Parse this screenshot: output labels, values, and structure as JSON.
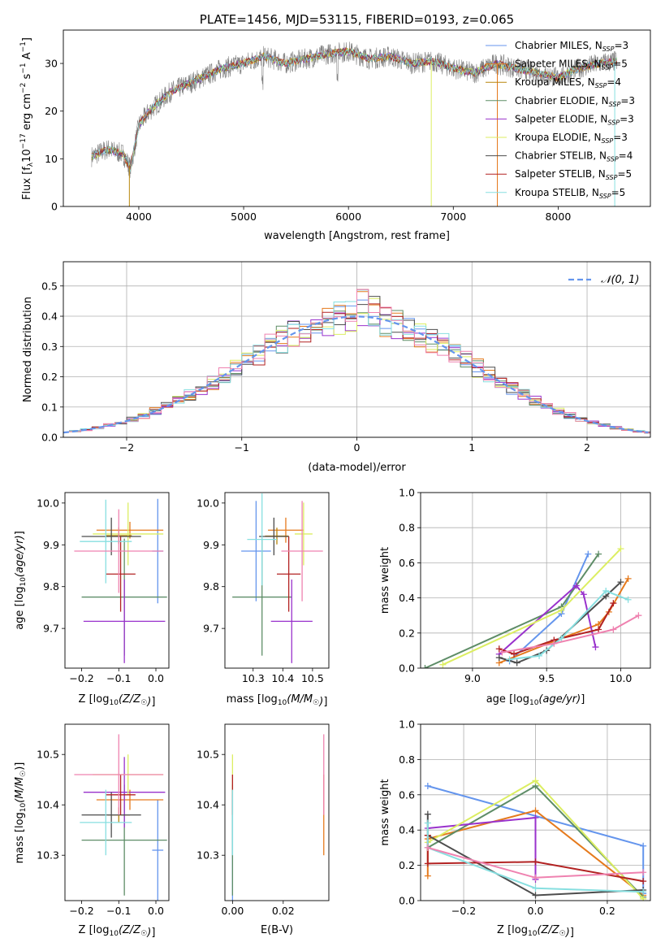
{
  "chart_data": [
    {
      "id": "spectrum",
      "type": "line",
      "title": "PLATE=1456, MJD=53115, FIBERID=0193, z=0.065",
      "xlabel": "wavelength [Angstrom, rest frame]",
      "ylabel": "Flux [f_λ10^-17 erg cm^-2 s^-1 A^-1]",
      "xlim": [
        3280,
        8880
      ],
      "ylim": [
        0,
        37
      ],
      "xticks": [
        4000,
        5000,
        6000,
        7000,
        8000
      ],
      "yticks": [
        0,
        10,
        20,
        30
      ],
      "grid": false,
      "legend_position": "top-right",
      "series": [
        {
          "name": "Chabrier MILES, N_SSP=3",
          "color": "#6495ed"
        },
        {
          "name": "Salpeter MILES, N_SSP=5",
          "color": "#e57a1d"
        },
        {
          "name": "Kroupa MILES, N_SSP=4",
          "color": "#b8860b"
        },
        {
          "name": "Chabrier ELODIE, N_SSP=3",
          "color": "#5e8d67"
        },
        {
          "name": "Salpeter ELODIE, N_SSP=3",
          "color": "#9932cc"
        },
        {
          "name": "Kroupa ELODIE, N_SSP=3",
          "color": "#dcee62"
        },
        {
          "name": "Chabrier STELIB, N_SSP=4",
          "color": "#4d4d4d"
        },
        {
          "name": "Salpeter STELIB, N_SSP=5",
          "color": "#b22222"
        },
        {
          "name": "Kroupa STELIB, N_SSP=5",
          "color": "#87dfe0"
        }
      ],
      "continuum": {
        "x": [
          3550,
          3700,
          3850,
          3920,
          4000,
          4100,
          4200,
          4300,
          4400,
          4600,
          4800,
          5000,
          5200,
          5400,
          5600,
          5800,
          6000,
          6200,
          6400,
          6600,
          6800,
          7000,
          7200,
          7400,
          7600,
          7800,
          8000,
          8200,
          8400,
          8560
        ],
        "y": [
          10.5,
          12,
          11,
          8,
          17,
          20,
          22,
          24,
          25,
          27,
          29,
          30,
          31.5,
          30,
          31,
          32,
          32.5,
          31,
          31.5,
          30,
          30.5,
          29,
          28,
          30,
          29,
          28,
          27,
          29,
          30,
          30.5
        ]
      }
    },
    {
      "id": "residual-hist",
      "type": "histogram",
      "xlabel": "(data-model)/error",
      "ylabel": "Normed distribution",
      "xlim": [
        -2.55,
        2.55
      ],
      "ylim": [
        0,
        0.58
      ],
      "xticks": [
        -2,
        -1,
        0,
        1,
        2
      ],
      "yticks": [
        0.0,
        0.1,
        0.2,
        0.3,
        0.4,
        0.5
      ],
      "grid": true,
      "legend_position": "top-right",
      "legend": [
        "𝒩(0, 1)"
      ],
      "bin_width": 0.1,
      "bin_start": -2.5,
      "normal_curve": {
        "mean": 0,
        "sigma": 1,
        "color": "#6495ed"
      }
    },
    {
      "id": "age-vs-Z",
      "type": "errorbar",
      "xlabel": "Z [log10(Z/Z☉)]",
      "ylabel": "age  [log10(age/yr)]",
      "xlim": [
        -0.245,
        0.035
      ],
      "ylim": [
        9.605,
        10.025
      ],
      "xticks": [
        -0.2,
        -0.1,
        0.0
      ],
      "yticks": [
        9.7,
        9.8,
        9.9,
        10.0
      ],
      "points": [
        {
          "x": 0.005,
          "xe": 0.015,
          "y": 9.885,
          "ye": 0.125,
          "color": "#6495ed"
        },
        {
          "x": -0.07,
          "xe": 0.09,
          "y": 9.935,
          "ye": 0.02,
          "color": "#e57a1d"
        },
        {
          "x": -0.1,
          "xe": 0.035,
          "y": 9.922,
          "ye": 0.02,
          "color": "#b8860b"
        },
        {
          "x": -0.085,
          "xe": 0.115,
          "y": 9.775,
          "ye": 0.14,
          "color": "#5e8d67"
        },
        {
          "x": -0.085,
          "xe": 0.11,
          "y": 9.717,
          "ye": 0.1,
          "color": "#9932cc"
        },
        {
          "x": -0.075,
          "xe": 0.095,
          "y": 9.926,
          "ye": 0.075,
          "color": "#dcee62"
        },
        {
          "x": -0.12,
          "xe": 0.08,
          "y": 9.92,
          "ye": 0.045,
          "color": "#4d4d4d"
        },
        {
          "x": -0.095,
          "xe": 0.04,
          "y": 9.83,
          "ye": 0.09,
          "color": "#b22222"
        },
        {
          "x": -0.135,
          "xe": 0.07,
          "y": 9.908,
          "ye": 0.1,
          "color": "#87dfe0"
        },
        {
          "x": -0.1,
          "xe": 0.12,
          "y": 9.885,
          "ye": 0.1,
          "color": "#ef82b0"
        }
      ]
    },
    {
      "id": "age-vs-mass",
      "type": "errorbar",
      "xlabel": "mass [log10(M/M☉)]",
      "ylabel": "",
      "xlim": [
        10.205,
        10.555
      ],
      "ylim": [
        9.605,
        10.025
      ],
      "xticks": [
        10.3,
        10.4,
        10.5
      ],
      "yticks": [
        9.7,
        9.8,
        9.9,
        10.0
      ],
      "points": [
        {
          "x": 10.31,
          "xe": 0.05,
          "y": 9.885,
          "ye": 0.12,
          "color": "#6495ed"
        },
        {
          "x": 10.41,
          "xe": 0.06,
          "y": 9.935,
          "ye": 0.03,
          "color": "#e57a1d"
        },
        {
          "x": 10.38,
          "xe": 0.04,
          "y": 9.921,
          "ye": 0.02,
          "color": "#b8860b"
        },
        {
          "x": 10.33,
          "xe": 0.1,
          "y": 9.775,
          "ye": 0.14,
          "color": "#5e8d67"
        },
        {
          "x": 10.43,
          "xe": 0.07,
          "y": 9.717,
          "ye": 0.1,
          "color": "#9932cc"
        },
        {
          "x": 10.47,
          "xe": 0.03,
          "y": 9.926,
          "ye": 0.075,
          "color": "#dcee62"
        },
        {
          "x": 10.37,
          "xe": 0.05,
          "y": 9.92,
          "ye": 0.045,
          "color": "#4d4d4d"
        },
        {
          "x": 10.42,
          "xe": 0.04,
          "y": 9.83,
          "ye": 0.09,
          "color": "#b22222"
        },
        {
          "x": 10.33,
          "xe": 0.05,
          "y": 9.913,
          "ye": 0.11,
          "color": "#87dfe0"
        },
        {
          "x": 10.465,
          "xe": 0.07,
          "y": 9.885,
          "ye": 0.12,
          "color": "#ef82b0"
        }
      ]
    },
    {
      "id": "weight-vs-age",
      "type": "line",
      "xlabel": "age  [log10(age/yr)]",
      "ylabel": "mass weight",
      "xlim": [
        8.65,
        10.2
      ],
      "ylim": [
        0,
        1.0
      ],
      "xticks": [
        9.0,
        9.5,
        10.0
      ],
      "yticks": [
        0.0,
        0.2,
        0.4,
        0.6,
        0.8,
        1.0
      ],
      "grid": true,
      "series": [
        {
          "color": "#6495ed",
          "x": [
            9.25,
            9.6,
            9.78
          ],
          "y": [
            0.04,
            0.31,
            0.65
          ]
        },
        {
          "color": "#e57a1d",
          "x": [
            9.18,
            9.6,
            9.85,
            9.92,
            10.05
          ],
          "y": [
            0.03,
            0.17,
            0.25,
            0.32,
            0.51
          ]
        },
        {
          "color": "#5e8d67",
          "x": [
            8.68,
            9.6,
            9.85
          ],
          "y": [
            0.0,
            0.35,
            0.65
          ]
        },
        {
          "color": "#9932cc",
          "x": [
            9.18,
            9.7,
            9.75,
            9.83
          ],
          "y": [
            0.08,
            0.47,
            0.42,
            0.12
          ]
        },
        {
          "color": "#dcee62",
          "x": [
            8.8,
            9.6,
            10.0
          ],
          "y": [
            0.02,
            0.33,
            0.68
          ]
        },
        {
          "color": "#4d4d4d",
          "x": [
            9.18,
            9.3,
            9.5,
            9.9,
            10.0
          ],
          "y": [
            0.06,
            0.03,
            0.1,
            0.41,
            0.49
          ]
        },
        {
          "color": "#b22222",
          "x": [
            9.18,
            9.28,
            9.55,
            9.85,
            9.95
          ],
          "y": [
            0.11,
            0.08,
            0.16,
            0.22,
            0.37
          ]
        },
        {
          "color": "#87dfe0",
          "x": [
            9.25,
            9.45,
            9.6,
            9.9,
            10.05
          ],
          "y": [
            0.05,
            0.07,
            0.17,
            0.44,
            0.39
          ]
        },
        {
          "color": "#ef82b0",
          "x": [
            9.2,
            9.55,
            9.95,
            10.12
          ],
          "y": [
            0.09,
            0.14,
            0.22,
            0.3
          ]
        }
      ]
    },
    {
      "id": "mass-vs-Z",
      "type": "errorbar",
      "xlabel": "Z [log10(Z/Z☉)]",
      "ylabel": "mass [log10(M/M☉)]",
      "xlim": [
        -0.245,
        0.035
      ],
      "ylim": [
        10.21,
        10.56
      ],
      "xticks": [
        -0.2,
        -0.1,
        0.0
      ],
      "yticks": [
        10.3,
        10.4,
        10.5
      ],
      "points": [
        {
          "x": 0.005,
          "xe": 0.015,
          "y": 10.31,
          "ye": 0.1,
          "color": "#6495ed"
        },
        {
          "x": -0.07,
          "xe": 0.09,
          "y": 10.41,
          "ye": 0.02,
          "color": "#e57a1d"
        },
        {
          "x": -0.1,
          "xe": 0.03,
          "y": 10.38,
          "ye": 0.015,
          "color": "#b8860b"
        },
        {
          "x": -0.085,
          "xe": 0.115,
          "y": 10.33,
          "ye": 0.11,
          "color": "#5e8d67"
        },
        {
          "x": -0.085,
          "xe": 0.11,
          "y": 10.425,
          "ye": 0.07,
          "color": "#9932cc"
        },
        {
          "x": -0.075,
          "xe": 0.095,
          "y": 10.46,
          "ye": 0.04,
          "color": "#dcee62"
        },
        {
          "x": -0.12,
          "xe": 0.08,
          "y": 10.38,
          "ye": 0.045,
          "color": "#4d4d4d"
        },
        {
          "x": -0.095,
          "xe": 0.04,
          "y": 10.42,
          "ye": 0.04,
          "color": "#b22222"
        },
        {
          "x": -0.135,
          "xe": 0.07,
          "y": 10.365,
          "ye": 0.065,
          "color": "#87dfe0"
        },
        {
          "x": -0.1,
          "xe": 0.12,
          "y": 10.46,
          "ye": 0.08,
          "color": "#ef82b0"
        }
      ]
    },
    {
      "id": "mass-vs-ebv",
      "type": "errorbar",
      "xlabel": "E(B-V)",
      "ylabel": "",
      "xlim": [
        -0.003,
        0.038
      ],
      "ylim": [
        10.21,
        10.56
      ],
      "xticks": [
        0.0,
        0.02
      ],
      "yticks": [
        10.3,
        10.4,
        10.5
      ],
      "points": [
        {
          "x": 0.0,
          "xe": 0,
          "y": 10.31,
          "ye": 0.1,
          "color": "#6495ed"
        },
        {
          "x": 0.0,
          "xe": 0,
          "y": 10.33,
          "ye": 0.11,
          "color": "#5e8d67"
        },
        {
          "x": 0.0,
          "xe": 0,
          "y": 10.46,
          "ye": 0.04,
          "color": "#dcee62"
        },
        {
          "x": 0.0,
          "xe": 0,
          "y": 10.42,
          "ye": 0.04,
          "color": "#b22222"
        },
        {
          "x": 0.0,
          "xe": 0,
          "y": 10.365,
          "ye": 0.065,
          "color": "#87dfe0"
        },
        {
          "x": 0.036,
          "xe": 0,
          "y": 10.38,
          "ye": 0.08,
          "color": "#e57a1d"
        },
        {
          "x": 0.036,
          "xe": 0,
          "y": 10.46,
          "ye": 0.08,
          "color": "#ef82b0"
        }
      ]
    },
    {
      "id": "weight-vs-Z",
      "type": "line",
      "xlabel": "Z [log10(Z/Z☉)]",
      "ylabel": "mass weight",
      "xlim": [
        -0.32,
        0.32
      ],
      "ylim": [
        0,
        1.0
      ],
      "xticks": [
        -0.2,
        0.0,
        0.2
      ],
      "yticks": [
        0.0,
        0.2,
        0.4,
        0.6,
        0.8,
        1.0
      ],
      "grid": true,
      "series": [
        {
          "color": "#6495ed",
          "x": [
            -0.3,
            0.3,
            0.3
          ],
          "y": [
            0.65,
            0.31,
            0.04
          ]
        },
        {
          "color": "#e57a1d",
          "x": [
            -0.3,
            -0.3,
            0.0,
            0.3
          ],
          "y": [
            0.14,
            0.35,
            0.51,
            0.03
          ]
        },
        {
          "color": "#5e8d67",
          "x": [
            -0.3,
            0.0,
            0.3
          ],
          "y": [
            0.3,
            0.65,
            0.02
          ]
        },
        {
          "color": "#9932cc",
          "x": [
            -0.3,
            0.0,
            0.0
          ],
          "y": [
            0.41,
            0.47,
            0.12
          ]
        },
        {
          "color": "#dcee62",
          "x": [
            -0.3,
            0.0,
            0.3
          ],
          "y": [
            0.33,
            0.68,
            0.01
          ]
        },
        {
          "color": "#4d4d4d",
          "x": [
            -0.3,
            -0.3,
            0.0,
            0.3
          ],
          "y": [
            0.49,
            0.37,
            0.03,
            0.06
          ]
        },
        {
          "color": "#b22222",
          "x": [
            -0.3,
            -0.3,
            0.0,
            0.3
          ],
          "y": [
            0.37,
            0.21,
            0.22,
            0.11
          ]
        },
        {
          "color": "#87dfe0",
          "x": [
            -0.3,
            -0.3,
            0.0,
            0.3
          ],
          "y": [
            0.44,
            0.3,
            0.07,
            0.05
          ]
        },
        {
          "color": "#ef82b0",
          "x": [
            -0.3,
            0.0,
            0.3
          ],
          "y": [
            0.3,
            0.13,
            0.16
          ]
        }
      ]
    }
  ]
}
